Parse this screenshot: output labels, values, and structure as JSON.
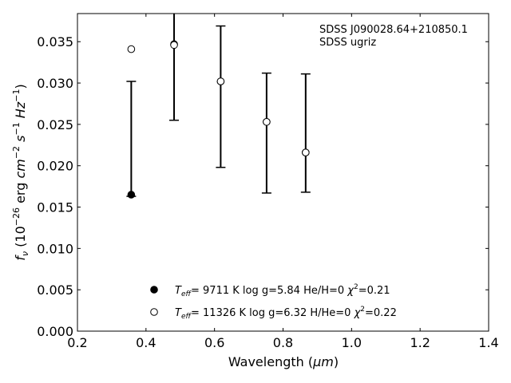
{
  "chart_data": {
    "type": "scatter",
    "xlabel": "Wavelength (",
    "xlabel_unit": "μm",
    "ylabel_parts": [
      "f",
      "ν",
      " (10",
      "−26",
      " erg ",
      "cm",
      "−2",
      " ",
      "s",
      "−1",
      " ",
      "Hz",
      "−1",
      ")"
    ],
    "xlim": [
      0.2,
      1.4
    ],
    "ylim": [
      0.0,
      0.0384
    ],
    "xticks": [
      0.2,
      0.4,
      0.6,
      0.8,
      1.0,
      1.2,
      1.4
    ],
    "xtick_labels": [
      "0.2",
      "0.4",
      "0.6",
      "0.8",
      "1.0",
      "1.2",
      "1.4"
    ],
    "yticks": [
      0.0,
      0.005,
      0.01,
      0.015,
      0.02,
      0.025,
      0.03,
      0.035
    ],
    "ytick_labels": [
      "0.000",
      "0.005",
      "0.010",
      "0.015",
      "0.020",
      "0.025",
      "0.030",
      "0.035"
    ],
    "annotations": [
      "SDSS J090028.64+210850.1",
      "SDSS ugriz"
    ],
    "grid": false,
    "legend_position": "bottom-center",
    "observed": {
      "x": [
        0.357,
        0.482,
        0.618,
        0.752,
        0.866
      ],
      "y": [
        0.0165,
        0.0349,
        0.0303,
        0.0253,
        0.0217
      ],
      "y_low": [
        0.0163,
        0.0255,
        0.0198,
        0.0167,
        0.0168
      ],
      "y_high": [
        0.0302,
        0.0384,
        0.0369,
        0.0312,
        0.0311
      ]
    },
    "series": [
      {
        "legend": {
          "t": "T",
          "sub": "eff",
          "rest": "=  9711 K  log g=5.84  He/H=0  ",
          "chi": "χ",
          "sup": "2",
          "tail": "=0.21"
        },
        "marker": "filled-circle",
        "x": [
          0.357,
          0.482,
          0.618,
          0.752,
          0.866
        ],
        "y": [
          0.0165,
          0.0347,
          0.0302,
          0.0253,
          0.0216
        ]
      },
      {
        "legend": {
          "t": "T",
          "sub": "eff",
          "rest": "= 11326 K  log g=6.32  H/He=0  ",
          "chi": "χ",
          "sup": "2",
          "tail": "=0.22"
        },
        "marker": "open-circle",
        "x": [
          0.357,
          0.482,
          0.618,
          0.752,
          0.866
        ],
        "y": [
          0.0341,
          0.0346,
          0.0302,
          0.0253,
          0.0216
        ]
      }
    ]
  }
}
